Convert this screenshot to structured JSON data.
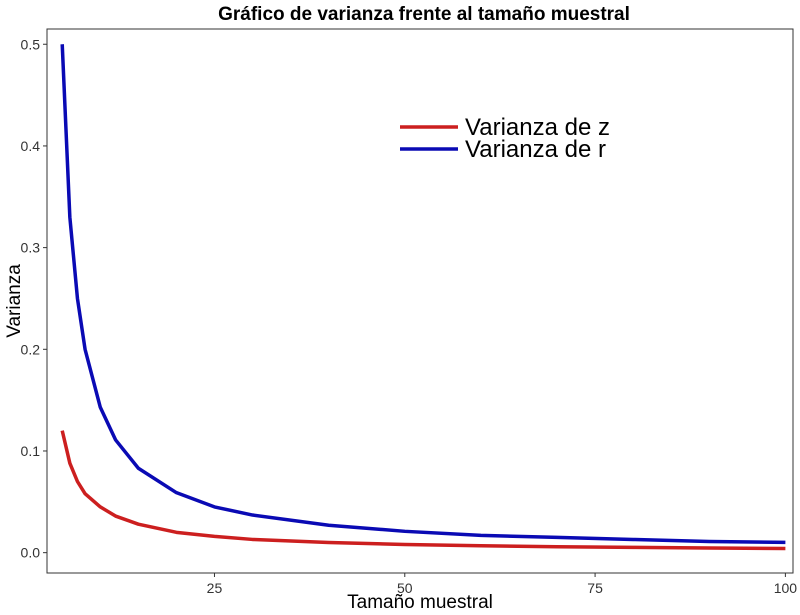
{
  "chart_data": {
    "type": "line",
    "title": "Gráfico de varianza frente al tamaño muestral",
    "xlabel": "Tamaño muestral",
    "ylabel": "Varianza",
    "xlim": [
      3,
      101
    ],
    "ylim": [
      -0.02,
      0.515
    ],
    "xticks": [
      25,
      50,
      75,
      100
    ],
    "yticks": [
      0.0,
      0.1,
      0.2,
      0.3,
      0.4,
      0.5
    ],
    "ytick_labels": [
      "0.0",
      "0.1",
      "0.2",
      "0.3",
      "0.4",
      "0.5"
    ],
    "x": [
      5,
      6,
      7,
      8,
      10,
      12,
      15,
      20,
      25,
      30,
      40,
      50,
      60,
      70,
      80,
      90,
      100
    ],
    "series": [
      {
        "name": "Varianza de z",
        "color": "#cc1f1f",
        "values": [
          0.12,
          0.088,
          0.07,
          0.058,
          0.045,
          0.036,
          0.028,
          0.02,
          0.016,
          0.013,
          0.01,
          0.008,
          0.0068,
          0.0058,
          0.0052,
          0.0046,
          0.0041
        ]
      },
      {
        "name": "Varianza de r",
        "color": "#0a0ab4",
        "values": [
          0.5,
          0.33,
          0.25,
          0.2,
          0.143,
          0.111,
          0.083,
          0.059,
          0.045,
          0.037,
          0.027,
          0.021,
          0.017,
          0.015,
          0.013,
          0.011,
          0.0101
        ]
      }
    ],
    "grid": false,
    "legend_position": "top-right"
  }
}
